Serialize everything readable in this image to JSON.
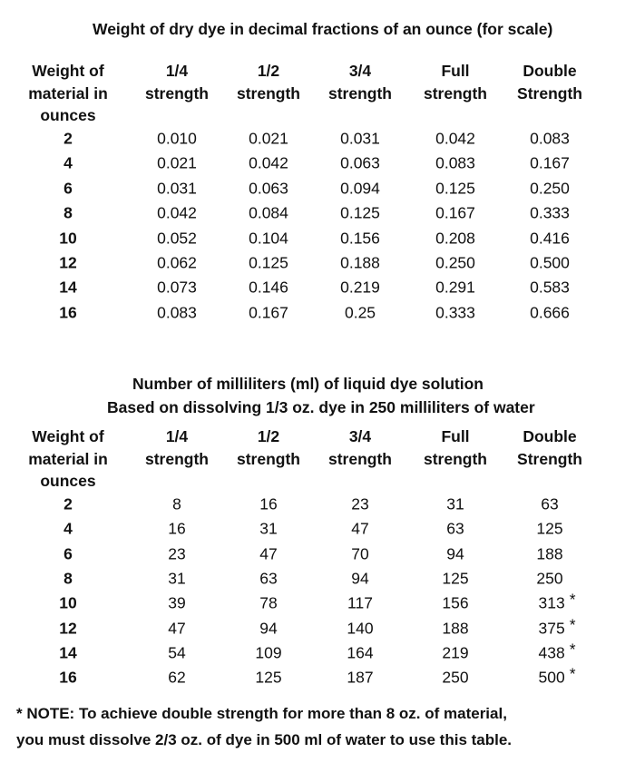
{
  "table1": {
    "title": "Weight of dry dye in decimal fractions of an ounce (for scale)",
    "headers": [
      [
        "Weight of",
        "material in",
        "ounces"
      ],
      [
        "1/4",
        "strength"
      ],
      [
        "1/2",
        "strength"
      ],
      [
        "3/4",
        "strength"
      ],
      [
        "Full",
        "strength"
      ],
      [
        "Double",
        "Strength"
      ]
    ],
    "rows": [
      [
        "2",
        "0.010",
        "0.021",
        "0.031",
        "0.042",
        "0.083"
      ],
      [
        "4",
        "0.021",
        "0.042",
        "0.063",
        "0.083",
        "0.167"
      ],
      [
        "6",
        "0.031",
        "0.063",
        "0.094",
        "0.125",
        "0.250"
      ],
      [
        "8",
        "0.042",
        "0.084",
        "0.125",
        "0.167",
        "0.333"
      ],
      [
        "10",
        "0.052",
        "0.104",
        "0.156",
        "0.208",
        "0.416"
      ],
      [
        "12",
        "0.062",
        "0.125",
        "0.188",
        "0.250",
        "0.500"
      ],
      [
        "14",
        "0.073",
        "0.146",
        "0.219",
        "0.291",
        "0.583"
      ],
      [
        "16",
        "0.083",
        "0.167",
        "0.25",
        "0.333",
        "0.666"
      ]
    ]
  },
  "table2": {
    "title_line1": "Number of milliliters (ml) of liquid dye solution",
    "title_line2": "Based on dissolving 1/3 oz. dye in 250 milliliters of water",
    "headers": [
      [
        "Weight of",
        "material in",
        "ounces"
      ],
      [
        "1/4",
        "strength"
      ],
      [
        "1/2",
        "strength"
      ],
      [
        "3/4",
        "strength"
      ],
      [
        "Full",
        "strength"
      ],
      [
        "Double",
        "Strength"
      ]
    ],
    "rows": [
      [
        "2",
        "8",
        "16",
        "23",
        "31",
        "63"
      ],
      [
        "4",
        "16",
        "31",
        "47",
        "63",
        "125"
      ],
      [
        "6",
        "23",
        "47",
        "70",
        "94",
        "188"
      ],
      [
        "8",
        "31",
        "63",
        "94",
        "125",
        "250"
      ],
      [
        "10",
        "39",
        "78",
        "117",
        "156",
        "313"
      ],
      [
        "12",
        "47",
        "94",
        "140",
        "188",
        "375"
      ],
      [
        "14",
        "54",
        "109",
        "164",
        "219",
        "438"
      ],
      [
        "16",
        "62",
        "125",
        "187",
        "250",
        "500"
      ]
    ],
    "starred_rows": [
      4,
      5,
      6,
      7
    ],
    "marker": "*"
  },
  "note": {
    "line1": "* NOTE: To achieve double strength for more than 8 oz. of material,",
    "line2": "you must dissolve 2/3 oz. of dye in 500 ml of water to use this table."
  }
}
